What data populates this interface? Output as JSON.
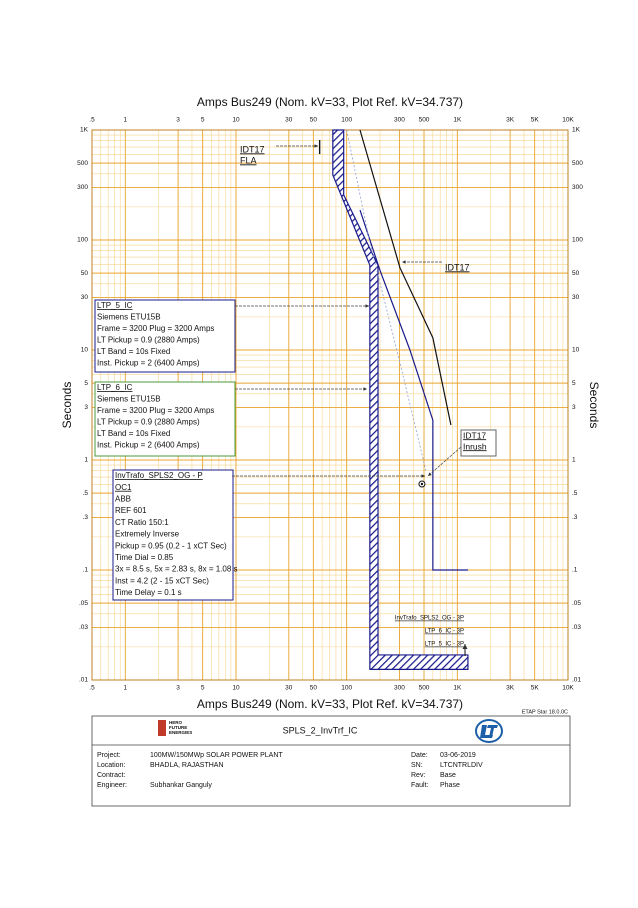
{
  "chart_data": {
    "type": "line",
    "title": "Amps   Bus249 (Nom. kV=33, Plot Ref. kV=34.737)",
    "y_label": "Seconds",
    "xlim": [
      0.5,
      10000
    ],
    "ylim": [
      0.01,
      1000
    ],
    "log_x": true,
    "log_y": true,
    "grid": true,
    "minor_grid": true,
    "xticks": [
      {
        "value": 0.5,
        "label": ".5"
      },
      1,
      3,
      5,
      10,
      30,
      50,
      100,
      300,
      500,
      {
        "value": 1000,
        "label": "1K"
      },
      {
        "value": 3000,
        "label": "3K"
      },
      {
        "value": 5000,
        "label": "5K"
      },
      {
        "value": 10000,
        "label": "10K"
      }
    ],
    "yticks": [
      {
        "value": 0.01,
        "label": ".01"
      },
      {
        "value": 0.03,
        "label": ".03"
      },
      {
        "value": 0.05,
        "label": ".05"
      },
      {
        "value": 0.1,
        "label": ".1"
      },
      {
        "value": 0.3,
        "label": ".3"
      },
      {
        "value": 0.5,
        "label": ".5"
      },
      1,
      3,
      5,
      10,
      30,
      50,
      100,
      300,
      500,
      {
        "value": 1000,
        "label": "1K"
      }
    ],
    "series": [
      {
        "color": "#1a1a8c",
        "x": [
          132,
          200,
          373,
          601,
          601,
          1247
        ],
        "y": [
          187,
          53,
          10,
          2.3,
          0.1,
          0.1
        ]
      },
      {
        "color": "#111111",
        "x": [
          132,
          303,
          601,
          875
        ],
        "y": [
          1000,
          56,
          12.9,
          2.08
        ]
      },
      {
        "color": "#8fa0d0",
        "dash": true,
        "x": [
          100,
          160,
          300,
          520
        ],
        "y": [
          1000,
          100,
          8,
          0.8
        ]
      }
    ],
    "band": {
      "color": "#1a1a8c",
      "x_low": [
        75,
        75,
        162,
        162,
        1247
      ],
      "y_low": [
        1000,
        390,
        59,
        0.0125,
        0.0125
      ],
      "x_high": [
        94,
        94,
        192,
        192,
        1247
      ],
      "y_high": [
        1000,
        257,
        59,
        0.0169,
        0.0169
      ]
    },
    "markers": [
      {
        "x": 57,
        "y": 700
      },
      {
        "x": 479,
        "y": 0.605
      }
    ],
    "annotations": [
      {
        "lines": [
          "IDT17",
          "FLA"
        ]
      },
      {
        "lines": [
          "IDT17"
        ]
      },
      {
        "lines": [
          "LTP_5_IC",
          "Siemens  ETU15B",
          "Frame = 3200 Plug = 3200 Amps",
          "LT Pickup = 0.9 (2880 Amps)",
          "LT Band = 10s Fixed",
          "Inst. Pickup = 2 (6400 Amps)"
        ]
      },
      {
        "lines": [
          "LTP_6_IC",
          "Siemens  ETU15B",
          "Frame = 3200 Plug = 3200 Amps",
          "LT Pickup = 0.9 (2880 Amps)",
          "LT Band = 10s Fixed",
          "Inst. Pickup = 2 (6400 Amps)"
        ]
      },
      {
        "lines": [
          "IDT17",
          "Inrush"
        ]
      },
      {
        "lines": [
          "InvTrafo_SPLS2_OG - P",
          "OC1",
          "ABB",
          "REF 601",
          "CT Ratio 150:1",
          "Extremely Inverse",
          "Pickup = 0.95 (0.2 - 1  xCT Sec)",
          "Time Dial = 0.85",
          "3x = 8.5 s, 5x = 2.83 s, 8x = 1.08 s",
          "Inst = 4.2 (2 - 15  xCT Sec)",
          "Time Delay = 0.1 s"
        ]
      }
    ],
    "curve_labels": [
      "InvTrafo_SPLS2_OG - 3P",
      "LTP_6_IC - 3P",
      "LTP_5_IC - 3P"
    ],
    "software": "ETAP Star 18.0.0C"
  },
  "title_block": {
    "company": [
      "HERO",
      "FUTURE",
      "ENERGIES"
    ],
    "drawing_title": "SPLS_2_InvTrf_IC",
    "fields_left": [
      {
        "label": "Project:",
        "value": "100MW/150MWp SOLAR POWER PLANT"
      },
      {
        "label": "Location:",
        "value": "BHADLA, RAJASTHAN"
      },
      {
        "label": "Contract:"
      },
      {
        "label": "Engineer:",
        "value": "Subhankar Ganguly"
      }
    ],
    "fields_right": [
      {
        "label": "Date:",
        "value": "03-06-2019"
      },
      {
        "label": "SN:",
        "value": "LTCNTRLDIV"
      },
      {
        "label": "Rev:",
        "value": "Base"
      },
      {
        "label": "Fault:",
        "value": "Phase"
      }
    ]
  }
}
